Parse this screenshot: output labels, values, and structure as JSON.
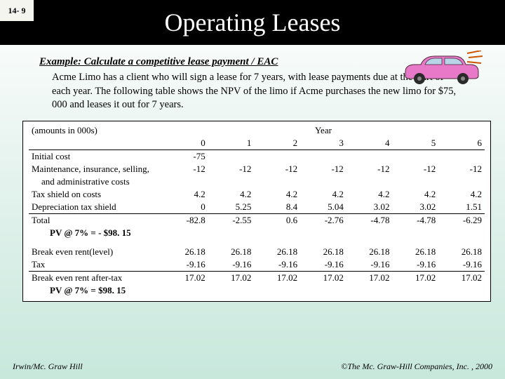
{
  "page_number": "14- 9",
  "title": "Operating Leases",
  "example_heading": "Example: Calculate a competitive lease payment /  EAC",
  "body_text": "Acme Limo has a client who will sign a lease for 7 years, with lease payments due at the start of each year.  The following table shows the NPV of the limo if Acme purchases the new limo for $75, 000 and leases it out for 7 years.",
  "table": {
    "amounts_label": "(amounts in 000s)",
    "year_label": "Year",
    "years": [
      "0",
      "1",
      "2",
      "3",
      "4",
      "5",
      "6"
    ],
    "rows_top": [
      {
        "label": "Initial cost",
        "vals": [
          "-75",
          "",
          "",
          "",
          "",
          "",
          ""
        ]
      },
      {
        "label": "Maintenance, insurance, selling,",
        "vals": [
          "-12",
          "-12",
          "-12",
          "-12",
          "-12",
          "-12",
          "-12"
        ]
      },
      {
        "label": "and administrative costs",
        "indent": true,
        "vals": [
          "",
          "",
          "",
          "",
          "",
          "",
          ""
        ]
      },
      {
        "label": "Tax shield on costs",
        "vals": [
          "4.2",
          "4.2",
          "4.2",
          "4.2",
          "4.2",
          "4.2",
          "4.2"
        ]
      },
      {
        "label": "Depreciation tax shield",
        "vals": [
          "0",
          "5.25",
          "8.4",
          "5.04",
          "3.02",
          "3.02",
          "1.51"
        ]
      },
      {
        "label": "Total",
        "sum": true,
        "vals": [
          "-82.8",
          "-2.55",
          "0.6",
          "-2.76",
          "-4.78",
          "-4.78",
          "-6.29"
        ]
      }
    ],
    "pv1_label": "PV @ 7% = - $98. 15",
    "rows_bottom": [
      {
        "label": "Break even rent(level)",
        "vals": [
          "26.18",
          "26.18",
          "26.18",
          "26.18",
          "26.18",
          "26.18",
          "26.18"
        ]
      },
      {
        "label": "Tax",
        "vals": [
          "-9.16",
          "-9.16",
          "-9.16",
          "-9.16",
          "-9.16",
          "-9.16",
          "-9.16"
        ]
      },
      {
        "label": "Break even rent after-tax",
        "sum": true,
        "vals": [
          "17.02",
          "17.02",
          "17.02",
          "17.02",
          "17.02",
          "17.02",
          "17.02"
        ]
      }
    ],
    "pv2_label": "PV @ 7% = $98. 15"
  },
  "footer_left": "Irwin/Mc. Graw Hill",
  "footer_right": "©The Mc. Graw-Hill Companies, Inc. , 2000",
  "car_colors": {
    "body": "#e879c8",
    "window": "#b8d4e8",
    "wheel": "#2a2a2a",
    "lines": "#cc5500"
  }
}
